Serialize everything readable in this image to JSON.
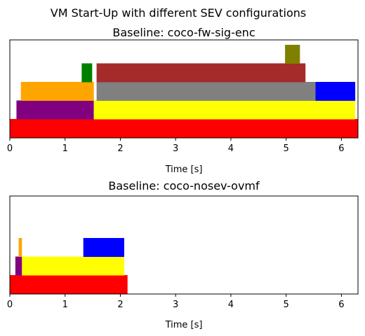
{
  "figure": {
    "title": "VM Start-Up with different SEV configurations"
  },
  "chart_data": [
    {
      "type": "bar",
      "orientation": "horizontal-timeline",
      "title": "Baseline: coco-fw-sig-enc",
      "xlabel": "Time [s]",
      "ylabel": "",
      "xlim": [
        0,
        6.3
      ],
      "xticks": [
        "0",
        "1",
        "2",
        "3",
        "4",
        "5",
        "6"
      ],
      "grid": false,
      "segments": [
        {
          "start": 0.0,
          "end": 6.3,
          "level": 0,
          "color": "#ff0000"
        },
        {
          "start": 0.12,
          "end": 1.52,
          "level": 1,
          "color": "#800080"
        },
        {
          "start": 1.52,
          "end": 6.25,
          "level": 1,
          "color": "#ffff00"
        },
        {
          "start": 0.2,
          "end": 1.52,
          "level": 2,
          "color": "#ffa500"
        },
        {
          "start": 1.57,
          "end": 5.53,
          "level": 2,
          "color": "#808080"
        },
        {
          "start": 5.53,
          "end": 6.25,
          "level": 2,
          "color": "#0000ff"
        },
        {
          "start": 1.3,
          "end": 1.49,
          "level": 3,
          "color": "#008000"
        },
        {
          "start": 1.57,
          "end": 5.35,
          "level": 3,
          "color": "#a52a2a"
        },
        {
          "start": 4.98,
          "end": 5.25,
          "level": 4,
          "color": "#808000"
        }
      ]
    },
    {
      "type": "bar",
      "orientation": "horizontal-timeline",
      "title": "Baseline: coco-nosev-ovmf",
      "xlabel": "Time [s]",
      "ylabel": "",
      "xlim": [
        0,
        6.3
      ],
      "xticks": [
        "0",
        "1",
        "2",
        "3",
        "4",
        "5",
        "6"
      ],
      "grid": false,
      "segments": [
        {
          "start": 0.0,
          "end": 2.13,
          "level": 0,
          "color": "#ff0000"
        },
        {
          "start": 0.1,
          "end": 0.22,
          "level": 1,
          "color": "#800080"
        },
        {
          "start": 0.22,
          "end": 2.07,
          "level": 1,
          "color": "#ffff00"
        },
        {
          "start": 0.16,
          "end": 0.22,
          "level": 2,
          "color": "#ffa500"
        },
        {
          "start": 1.33,
          "end": 2.07,
          "level": 2,
          "color": "#0000ff"
        }
      ]
    }
  ]
}
